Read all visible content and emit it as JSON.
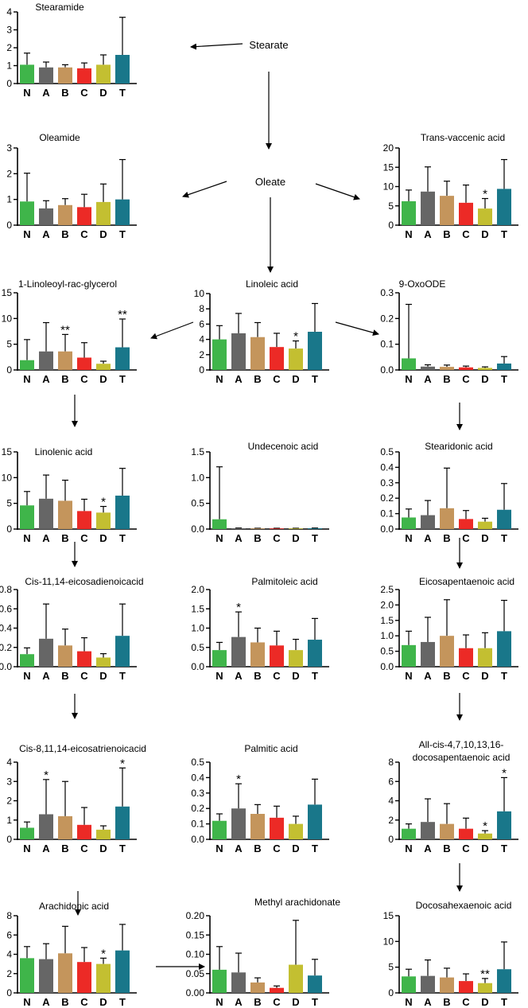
{
  "colors": {
    "N": "#3fb54a",
    "A": "#666666",
    "B": "#c4955c",
    "C": "#ec2a26",
    "D": "#c3bf31",
    "T": "#19778a",
    "axis": "#000000"
  },
  "nodes": {
    "stearate": "Stearate",
    "oleate": "Oleate"
  },
  "chart_data": [
    {
      "id": "stearamide",
      "type": "bar",
      "title": "Stearamide",
      "categories": [
        "N",
        "A",
        "B",
        "C",
        "D",
        "T"
      ],
      "values": [
        1.05,
        0.9,
        0.9,
        0.85,
        1.05,
        1.6
      ],
      "errors": [
        0.65,
        0.3,
        0.15,
        0.3,
        0.55,
        2.1
      ],
      "stars": [
        "",
        "",
        "",
        "",
        "",
        ""
      ],
      "ylim": [
        0,
        4
      ],
      "yticks": [
        "0",
        "1",
        "2",
        "3",
        "4"
      ]
    },
    {
      "id": "oleamide",
      "type": "bar",
      "title": "Oleamide",
      "categories": [
        "N",
        "A",
        "B",
        "C",
        "D",
        "T"
      ],
      "values": [
        0.92,
        0.65,
        0.78,
        0.7,
        0.9,
        1.0
      ],
      "errors": [
        1.1,
        0.3,
        0.25,
        0.5,
        0.7,
        1.55
      ],
      "stars": [
        "",
        "",
        "",
        "",
        "",
        ""
      ],
      "ylim": [
        0,
        3
      ],
      "yticks": [
        "0",
        "1",
        "2",
        "3"
      ]
    },
    {
      "id": "trans_vaccenic",
      "type": "bar",
      "title": "Trans-vaccenic acid",
      "categories": [
        "N",
        "A",
        "B",
        "C",
        "D",
        "T"
      ],
      "values": [
        6.2,
        8.7,
        7.6,
        5.8,
        4.3,
        9.4
      ],
      "errors": [
        2.9,
        6.4,
        3.8,
        4.6,
        2.6,
        7.6
      ],
      "stars": [
        "",
        "",
        "",
        "",
        "*",
        ""
      ],
      "ylim": [
        0,
        20
      ],
      "yticks": [
        "0",
        "5",
        "10",
        "15",
        "20"
      ]
    },
    {
      "id": "linoleoyl_glycerol",
      "type": "bar",
      "title": "1-Linoleoyl-rac-glycerol",
      "categories": [
        "N",
        "A",
        "B",
        "C",
        "D",
        "T"
      ],
      "values": [
        1.9,
        3.6,
        3.6,
        2.4,
        1.2,
        4.4
      ],
      "errors": [
        4.0,
        5.6,
        3.3,
        2.9,
        0.5,
        5.5
      ],
      "stars": [
        "",
        "",
        "**",
        "",
        "",
        "**"
      ],
      "ylim": [
        0,
        15
      ],
      "yticks": [
        "0",
        "5",
        "10",
        "15"
      ]
    },
    {
      "id": "linoleic",
      "type": "bar",
      "title": "Linoleic acid",
      "categories": [
        "N",
        "A",
        "B",
        "C",
        "D",
        "T"
      ],
      "values": [
        4.0,
        4.8,
        4.3,
        3.0,
        2.8,
        5.0
      ],
      "errors": [
        1.8,
        2.6,
        1.9,
        1.8,
        1.0,
        3.7
      ],
      "stars": [
        "",
        "",
        "",
        "",
        "*",
        ""
      ],
      "ylim": [
        0,
        10
      ],
      "yticks": [
        "0",
        "2",
        "4",
        "6",
        "8",
        "10"
      ]
    },
    {
      "id": "oxoode",
      "type": "bar",
      "title": "9-OxoODE",
      "categories": [
        "N",
        "A",
        "B",
        "C",
        "D",
        "T"
      ],
      "values": [
        0.045,
        0.013,
        0.012,
        0.01,
        0.008,
        0.025
      ],
      "errors": [
        0.21,
        0.007,
        0.007,
        0.005,
        0.004,
        0.027
      ],
      "stars": [
        "",
        "",
        "",
        "",
        "",
        ""
      ],
      "ylim": [
        0,
        0.3
      ],
      "yticks": [
        "0.0",
        "0.1",
        "0.2",
        "0.3"
      ]
    },
    {
      "id": "linolenic",
      "type": "bar",
      "title": "Linolenic acid",
      "categories": [
        "N",
        "A",
        "B",
        "C",
        "D",
        "T"
      ],
      "values": [
        4.6,
        5.9,
        5.5,
        3.5,
        3.2,
        6.5
      ],
      "errors": [
        2.7,
        4.6,
        4.0,
        2.3,
        1.2,
        5.3
      ],
      "stars": [
        "",
        "",
        "",
        "",
        "*",
        ""
      ],
      "ylim": [
        0,
        15
      ],
      "yticks": [
        "0",
        "5",
        "10",
        "15"
      ]
    },
    {
      "id": "undecenoic",
      "type": "bar",
      "title": "Undecenoic acid",
      "categories": [
        "N",
        "A",
        "B",
        "C",
        "D",
        "T"
      ],
      "values": [
        0.19,
        0.015,
        0.012,
        0.012,
        0.012,
        0.015
      ],
      "errors": [
        1.02,
        0.005,
        0.004,
        0.004,
        0.004,
        0.005
      ],
      "stars": [
        "",
        "",
        "",
        "",
        "",
        ""
      ],
      "ylim": [
        0,
        1.5
      ],
      "yticks": [
        "0.0",
        "0.5",
        "1.0",
        "1.5"
      ]
    },
    {
      "id": "stearidonic",
      "type": "bar",
      "title": "Stearidonic acid",
      "categories": [
        "N",
        "A",
        "B",
        "C",
        "D",
        "T"
      ],
      "values": [
        0.075,
        0.09,
        0.135,
        0.065,
        0.048,
        0.125
      ],
      "errors": [
        0.055,
        0.095,
        0.26,
        0.055,
        0.022,
        0.17
      ],
      "stars": [
        "",
        "",
        "",
        "",
        "",
        ""
      ],
      "ylim": [
        0,
        0.5
      ],
      "yticks": [
        "0.0",
        "0.1",
        "0.2",
        "0.3",
        "0.4",
        "0.5"
      ]
    },
    {
      "id": "eicosadienoic",
      "type": "bar",
      "title": "Cis-11,14-eicosadienoicacid",
      "categories": [
        "N",
        "A",
        "B",
        "C",
        "D",
        "T"
      ],
      "values": [
        0.13,
        0.29,
        0.22,
        0.16,
        0.095,
        0.32
      ],
      "errors": [
        0.065,
        0.36,
        0.17,
        0.14,
        0.04,
        0.33
      ],
      "stars": [
        "",
        "",
        "",
        "",
        "",
        ""
      ],
      "ylim": [
        0,
        0.8
      ],
      "yticks": [
        "0.0",
        "0.2",
        "0.4",
        "0.6",
        "0.8"
      ]
    },
    {
      "id": "palmitoleic",
      "type": "bar",
      "title": "Palmitoleic acid",
      "categories": [
        "N",
        "A",
        "B",
        "C",
        "D",
        "T"
      ],
      "values": [
        0.43,
        0.77,
        0.63,
        0.55,
        0.43,
        0.7
      ],
      "errors": [
        0.2,
        0.65,
        0.37,
        0.37,
        0.28,
        0.55
      ],
      "stars": [
        "",
        "*",
        "",
        "",
        "",
        ""
      ],
      "ylim": [
        0,
        2.0
      ],
      "yticks": [
        "0.0",
        "0.5",
        "1.0",
        "1.5",
        "2.0"
      ]
    },
    {
      "id": "eicosapentaenoic",
      "type": "bar",
      "title": "Eicosapentaenoic acid",
      "categories": [
        "N",
        "A",
        "B",
        "C",
        "D",
        "T"
      ],
      "values": [
        0.7,
        0.8,
        1.0,
        0.6,
        0.6,
        1.15
      ],
      "errors": [
        0.45,
        0.8,
        1.17,
        0.43,
        0.5,
        1.0
      ],
      "stars": [
        "",
        "",
        "",
        "",
        "",
        ""
      ],
      "ylim": [
        0,
        2.5
      ],
      "yticks": [
        "0.0",
        "0.5",
        "1.0",
        "1.5",
        "2.0",
        "2.5"
      ]
    },
    {
      "id": "eicosatrienoic",
      "type": "bar",
      "title": "Cis-8,11,14-eicosatrienoicacid",
      "categories": [
        "N",
        "A",
        "B",
        "C",
        "D",
        "T"
      ],
      "values": [
        0.6,
        1.3,
        1.2,
        0.75,
        0.5,
        1.7
      ],
      "errors": [
        0.3,
        1.8,
        1.8,
        0.9,
        0.2,
        2.0
      ],
      "stars": [
        "",
        "*",
        "",
        "",
        "",
        "*"
      ],
      "ylim": [
        0,
        4
      ],
      "yticks": [
        "0",
        "1",
        "2",
        "3",
        "4"
      ]
    },
    {
      "id": "palmitic",
      "type": "bar",
      "title": "Palmitic acid",
      "categories": [
        "N",
        "A",
        "B",
        "C",
        "D",
        "T"
      ],
      "values": [
        0.12,
        0.2,
        0.165,
        0.14,
        0.1,
        0.225
      ],
      "errors": [
        0.045,
        0.16,
        0.06,
        0.075,
        0.05,
        0.165
      ],
      "stars": [
        "",
        "*",
        "",
        "",
        "",
        ""
      ],
      "ylim": [
        0,
        0.5
      ],
      "yticks": [
        "0.0",
        "0.1",
        "0.2",
        "0.3",
        "0.4",
        "0.5"
      ]
    },
    {
      "id": "docosapentaenoic",
      "type": "bar",
      "title": "All-cis-4,7,10,13,16-",
      "title2": "docosapentaenoic acid",
      "categories": [
        "N",
        "A",
        "B",
        "C",
        "D",
        "T"
      ],
      "values": [
        1.1,
        1.8,
        1.6,
        1.1,
        0.6,
        2.9
      ],
      "errors": [
        0.5,
        2.4,
        2.1,
        1.1,
        0.3,
        3.5
      ],
      "stars": [
        "",
        "",
        "",
        "",
        "*",
        "*"
      ],
      "ylim": [
        0,
        8
      ],
      "yticks": [
        "0",
        "2",
        "4",
        "6",
        "8"
      ]
    },
    {
      "id": "arachidonic",
      "type": "bar",
      "title": "Arachidonic acid",
      "categories": [
        "N",
        "A",
        "B",
        "C",
        "D",
        "T"
      ],
      "values": [
        3.6,
        3.5,
        4.1,
        3.2,
        3.0,
        4.4
      ],
      "errors": [
        1.2,
        1.6,
        2.8,
        1.5,
        0.6,
        2.7
      ],
      "stars": [
        "",
        "",
        "",
        "",
        "*",
        ""
      ],
      "ylim": [
        0,
        8
      ],
      "yticks": [
        "0",
        "2",
        "4",
        "6",
        "8"
      ]
    },
    {
      "id": "methyl_arachidonate",
      "type": "bar",
      "title": "Methyl arachidonate",
      "categories": [
        "N",
        "A",
        "B",
        "C",
        "D",
        "T"
      ],
      "values": [
        0.06,
        0.053,
        0.027,
        0.013,
        0.073,
        0.045
      ],
      "errors": [
        0.06,
        0.05,
        0.012,
        0.005,
        0.115,
        0.042
      ],
      "stars": [
        "",
        "",
        "",
        "",
        "",
        ""
      ],
      "ylim": [
        0,
        0.2
      ],
      "yticks": [
        "0.00",
        "0.05",
        "0.10",
        "0.15",
        "0.20"
      ]
    },
    {
      "id": "docosahexaenoic",
      "type": "bar",
      "title": "Docosahexaenoic acid",
      "categories": [
        "N",
        "A",
        "B",
        "C",
        "D",
        "T"
      ],
      "values": [
        3.2,
        3.3,
        3.0,
        2.3,
        1.9,
        4.6
      ],
      "errors": [
        1.4,
        3.1,
        1.8,
        1.4,
        0.9,
        5.3
      ],
      "stars": [
        "",
        "",
        "",
        "",
        "**",
        ""
      ],
      "ylim": [
        0,
        15
      ],
      "yticks": [
        "0",
        "5",
        "10",
        "15"
      ]
    }
  ]
}
